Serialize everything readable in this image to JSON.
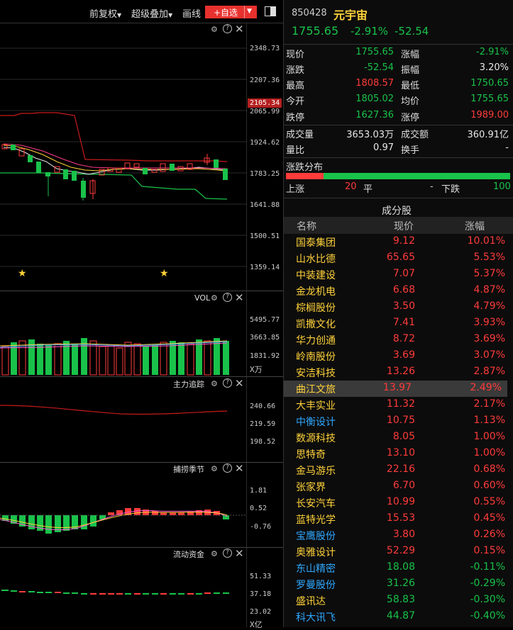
{
  "toolbar": {
    "restore": "前复权",
    "overlay": "超级叠加",
    "draw": "画线",
    "add_watch": "+自选"
  },
  "main_axis": [
    "2348.73",
    "2207.36",
    "2105.34",
    "2065.99",
    "1924.62",
    "1783.25",
    "1641.88",
    "1500.51",
    "1359.14"
  ],
  "vol": {
    "title": "VOL",
    "axis": [
      "5495.77",
      "3663.85",
      "1831.92"
    ],
    "unit": "X万"
  },
  "zhuli": {
    "title": "主力追踪",
    "axis": [
      "240.66",
      "219.59",
      "198.52"
    ]
  },
  "bulao": {
    "title": "捕捞季节",
    "axis": [
      "1.81",
      "0.52",
      "-0.76"
    ]
  },
  "liudong": {
    "title": "流动资金",
    "axis": [
      "51.33",
      "37.18",
      "23.02"
    ],
    "unit": "X亿"
  },
  "stock": {
    "code": "850428",
    "name": "元宇宙",
    "price": "1755.65",
    "pct": "-2.91%",
    "chg": "-52.54"
  },
  "quote": {
    "xianjia_l": "现价",
    "xianjia": "1755.65",
    "zhangfu_l": "涨幅",
    "zhangfu": "-2.91%",
    "zhangdie_l": "涨跌",
    "zhangdie": "-52.54",
    "zhenfu_l": "振幅",
    "zhenfu": "3.20%",
    "zuigao_l": "最高",
    "zuigao": "1808.57",
    "zuidi_l": "最低",
    "zuidi": "1750.65",
    "jinkai_l": "今开",
    "jinkai": "1805.02",
    "junjia_l": "均价",
    "junjia": "1755.65",
    "dieting_l": "跌停",
    "dieting": "1627.36",
    "zhangting_l": "涨停",
    "zhangting": "1989.00",
    "cjl_l": "成交量",
    "cjl": "3653.03万",
    "cje_l": "成交额",
    "cje": "360.91亿",
    "liangbi_l": "量比",
    "liangbi": "0.97",
    "huanshou_l": "换手",
    "huanshou": "-"
  },
  "distribution": {
    "title": "涨跌分布",
    "up_label": "上涨",
    "up": "20",
    "flat_label": "平",
    "flat": "-",
    "down_label": "下跌",
    "down": "100",
    "up_fraction": 0.167
  },
  "components": {
    "title": "成分股",
    "headers": [
      "名称",
      "现价",
      "涨幅"
    ],
    "rows": [
      {
        "name": "国泰集团",
        "price": "9.12",
        "pct": "10.01%",
        "c": "yellow"
      },
      {
        "name": "山水比德",
        "price": "65.65",
        "pct": "5.53%",
        "c": "yellow"
      },
      {
        "name": "中装建设",
        "price": "7.07",
        "pct": "5.37%",
        "c": "yellow"
      },
      {
        "name": "金龙机电",
        "price": "6.68",
        "pct": "4.87%",
        "c": "yellow"
      },
      {
        "name": "棕榈股份",
        "price": "3.50",
        "pct": "4.79%",
        "c": "yellow"
      },
      {
        "name": "凯撒文化",
        "price": "7.41",
        "pct": "3.93%",
        "c": "yellow"
      },
      {
        "name": "华力创通",
        "price": "8.72",
        "pct": "3.69%",
        "c": "yellow"
      },
      {
        "name": "岭南股份",
        "price": "3.69",
        "pct": "3.07%",
        "c": "yellow"
      },
      {
        "name": "安洁科技",
        "price": "13.26",
        "pct": "2.87%",
        "c": "yellow"
      },
      {
        "name": "曲江文旅",
        "price": "13.97",
        "pct": "2.49%",
        "c": "yellow"
      },
      {
        "name": "大丰实业",
        "price": "11.32",
        "pct": "2.17%",
        "c": "yellow"
      },
      {
        "name": "中衡设计",
        "price": "10.75",
        "pct": "1.13%",
        "c": "blue"
      },
      {
        "name": "数源科技",
        "price": "8.05",
        "pct": "1.00%",
        "c": "yellow"
      },
      {
        "name": "思特奇",
        "price": "13.10",
        "pct": "1.00%",
        "c": "yellow"
      },
      {
        "name": "金马游乐",
        "price": "22.16",
        "pct": "0.68%",
        "c": "yellow"
      },
      {
        "name": "张家界",
        "price": "6.70",
        "pct": "0.60%",
        "c": "yellow"
      },
      {
        "name": "长安汽车",
        "price": "10.99",
        "pct": "0.55%",
        "c": "yellow"
      },
      {
        "name": "蓝特光学",
        "price": "15.53",
        "pct": "0.45%",
        "c": "yellow"
      },
      {
        "name": "宝鹰股份",
        "price": "3.80",
        "pct": "0.26%",
        "c": "blue"
      },
      {
        "name": "奥雅设计",
        "price": "52.29",
        "pct": "0.15%",
        "c": "yellow"
      },
      {
        "name": "东山精密",
        "price": "18.08",
        "pct": "-0.11%",
        "c": "blue"
      },
      {
        "name": "罗曼股份",
        "price": "31.26",
        "pct": "-0.29%",
        "c": "blue"
      },
      {
        "name": "盛讯达",
        "price": "58.83",
        "pct": "-0.30%",
        "c": "yellow"
      },
      {
        "name": "科大讯飞",
        "price": "44.87",
        "pct": "-0.40%",
        "c": "blue"
      }
    ]
  }
}
